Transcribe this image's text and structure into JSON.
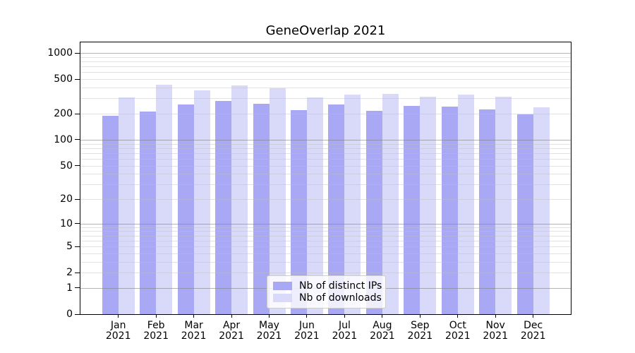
{
  "chart_data": {
    "type": "bar",
    "title": "GeneOverlap 2021",
    "categories": [
      "Jan 2021",
      "Feb 2021",
      "Mar 2021",
      "Apr 2021",
      "May 2021",
      "Jun 2021",
      "Jul 2021",
      "Aug 2021",
      "Sep 2021",
      "Oct 2021",
      "Nov 2021",
      "Dec 2021"
    ],
    "x_tick_line1": [
      "Jan",
      "Feb",
      "Mar",
      "Apr",
      "May",
      "Jun",
      "Jul",
      "Aug",
      "Sep",
      "Oct",
      "Nov",
      "Dec"
    ],
    "x_tick_line2": "2021",
    "series": [
      {
        "name": "Nb of distinct IPs",
        "color": "#a8a8f4",
        "values": [
          190,
          210,
          255,
          280,
          260,
          220,
          255,
          215,
          245,
          240,
          225,
          195
        ]
      },
      {
        "name": "Nb of downloads",
        "color": "#d9d9fa",
        "values": [
          310,
          430,
          370,
          420,
          395,
          310,
          330,
          340,
          315,
          330,
          315,
          235
        ]
      }
    ],
    "y_axis": {
      "scale": "log1p",
      "tick_labels": [
        0,
        1,
        2,
        5,
        10,
        20,
        50,
        100,
        200,
        500,
        1000
      ],
      "major_gridlines": [
        1,
        10,
        100,
        1000
      ],
      "ylim": [
        0,
        1325
      ],
      "grid": "on"
    },
    "legend": {
      "position": "lower-center",
      "entries": [
        "Nb of distinct IPs",
        "Nb of downloads"
      ]
    },
    "colors": {
      "background": "#ffffff",
      "axis": "#000000",
      "text": "#000000",
      "major_grid": "rgba(130,130,130,0.60)",
      "minor_grid": "rgba(190,190,190,0.45)",
      "legend_border": "#cccccc",
      "legend_bg": "rgba(255,255,255,0.8)"
    }
  }
}
